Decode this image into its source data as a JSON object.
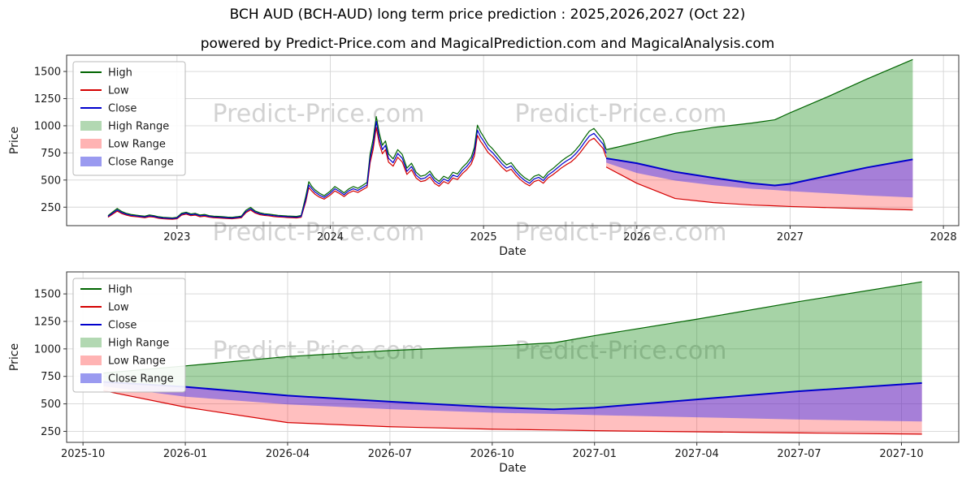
{
  "header": {
    "title": "BCH AUD (BCH-AUD) long term price prediction : 2025,2026,2027 (Oct 22)",
    "subtitle": "powered by Predict-Price.com and MagicalPrediction.com and MagicalAnalysis.com"
  },
  "watermark": {
    "text": "Predict-Price.com"
  },
  "chart_data": {
    "type": "line",
    "title": "BCH AUD (BCH-AUD) long term price prediction : 2025,2026,2027 (Oct 22)",
    "legend": [
      {
        "label": "High",
        "type": "line",
        "color": "#006400"
      },
      {
        "label": "Low",
        "type": "line",
        "color": "#d40000"
      },
      {
        "label": "Close",
        "type": "line",
        "color": "#0000cd"
      },
      {
        "label": "High Range",
        "type": "patch",
        "color": "#b2d8b2"
      },
      {
        "label": "Low Range",
        "type": "patch",
        "color": "#ffb3b3"
      },
      {
        "label": "Close Range",
        "type": "patch",
        "color": "#9a9af0"
      }
    ],
    "colors": {
      "high_line": "#006400",
      "low_line": "#d40000",
      "close_line": "#0000cd",
      "high_fill": "#008000",
      "low_fill": "#ff2a2a",
      "close_fill": "#2020ff",
      "grid": "#d5d5d5",
      "watermark": "#d2d2d2"
    },
    "history": {
      "x": [
        2022.55,
        2022.58,
        2022.61,
        2022.64,
        2022.67,
        2022.7,
        2022.73,
        2022.76,
        2022.79,
        2022.82,
        2022.85,
        2022.88,
        2022.91,
        2022.94,
        2022.97,
        2023.0,
        2023.03,
        2023.06,
        2023.09,
        2023.12,
        2023.15,
        2023.18,
        2023.21,
        2023.24,
        2023.27,
        2023.3,
        2023.33,
        2023.36,
        2023.39,
        2023.42,
        2023.45,
        2023.48,
        2023.51,
        2023.54,
        2023.57,
        2023.6,
        2023.63,
        2023.66,
        2023.69,
        2023.72,
        2023.75,
        2023.78,
        2023.81,
        2023.84,
        2023.86,
        2023.88,
        2023.9,
        2023.93,
        2023.96,
        2024.0,
        2024.03,
        2024.06,
        2024.09,
        2024.12,
        2024.15,
        2024.18,
        2024.21,
        2024.24,
        2024.26,
        2024.28,
        2024.3,
        2024.32,
        2024.34,
        2024.36,
        2024.38,
        2024.41,
        2024.44,
        2024.47,
        2024.5,
        2024.53,
        2024.56,
        2024.59,
        2024.62,
        2024.65,
        2024.68,
        2024.71,
        2024.74,
        2024.77,
        2024.8,
        2024.83,
        2024.86,
        2024.89,
        2024.92,
        2024.94,
        2024.96,
        2024.98,
        2025.0,
        2025.03,
        2025.06,
        2025.09,
        2025.12,
        2025.15,
        2025.18,
        2025.21,
        2025.24,
        2025.27,
        2025.3,
        2025.33,
        2025.36,
        2025.39,
        2025.42,
        2025.45,
        2025.48,
        2025.51,
        2025.54,
        2025.57,
        2025.6,
        2025.63,
        2025.66,
        2025.69,
        2025.72,
        2025.75,
        2025.78,
        2025.8
      ],
      "high": [
        172,
        205,
        238,
        210,
        193,
        183,
        177,
        172,
        167,
        178,
        172,
        162,
        157,
        154,
        151,
        157,
        194,
        204,
        188,
        193,
        178,
        183,
        172,
        167,
        165,
        162,
        159,
        157,
        162,
        168,
        222,
        248,
        215,
        199,
        190,
        186,
        180,
        175,
        172,
        169,
        167,
        165,
        174,
        350,
        485,
        440,
        410,
        378,
        356,
        398,
        440,
        413,
        382,
        418,
        440,
        424,
        450,
        478,
        740,
        880,
        1085,
        930,
        820,
        860,
        740,
        695,
        780,
        735,
        610,
        655,
        572,
        535,
        546,
        582,
        520,
        488,
        535,
        514,
        572,
        556,
        614,
        655,
        712,
        800,
        1005,
        945,
        900,
        828,
        786,
        734,
        682,
        640,
        660,
        603,
        556,
        520,
        494,
        535,
        550,
        519,
        572,
        603,
        640,
        677,
        708,
        734,
        776,
        828,
        892,
        950,
        975,
        922,
        870,
        782
      ],
      "low": [
        158,
        186,
        214,
        191,
        177,
        167,
        163,
        158,
        153,
        162,
        158,
        148,
        143,
        141,
        139,
        143,
        177,
        186,
        172,
        177,
        162,
        167,
        158,
        153,
        151,
        148,
        145,
        143,
        148,
        153,
        200,
        224,
        196,
        181,
        174,
        170,
        164,
        160,
        158,
        155,
        153,
        151,
        157,
        300,
        430,
        398,
        370,
        342,
        324,
        362,
        400,
        376,
        348,
        381,
        400,
        386,
        410,
        434,
        660,
        785,
        985,
        835,
        742,
        780,
        665,
        628,
        710,
        665,
        552,
        595,
        519,
        486,
        495,
        528,
        471,
        443,
        486,
        467,
        519,
        505,
        557,
        595,
        648,
        722,
        912,
        857,
        818,
        752,
        714,
        666,
        618,
        580,
        600,
        547,
        504,
        471,
        447,
        486,
        500,
        471,
        519,
        547,
        580,
        614,
        642,
        666,
        704,
        752,
        808,
        862,
        885,
        838,
        790,
        708
      ],
      "close": [
        165,
        195,
        225,
        200,
        185,
        175,
        170,
        165,
        160,
        170,
        165,
        155,
        150,
        148,
        145,
        150,
        185,
        195,
        180,
        185,
        170,
        175,
        165,
        160,
        158,
        155,
        152,
        150,
        155,
        160,
        210,
        235,
        205,
        190,
        182,
        178,
        172,
        168,
        165,
        162,
        160,
        158,
        165,
        320,
        455,
        420,
        390,
        360,
        340,
        380,
        420,
        395,
        365,
        400,
        420,
        405,
        430,
        455,
        700,
        830,
        1040,
        880,
        780,
        820,
        700,
        660,
        745,
        700,
        580,
        625,
        545,
        510,
        520,
        555,
        495,
        465,
        510,
        490,
        545,
        530,
        585,
        625,
        680,
        760,
        960,
        900,
        860,
        790,
        750,
        700,
        650,
        610,
        630,
        575,
        530,
        495,
        470,
        510,
        525,
        495,
        545,
        575,
        610,
        645,
        675,
        700,
        740,
        790,
        850,
        905,
        930,
        880,
        830,
        745
      ]
    },
    "forecast": {
      "x": [
        2025.8,
        2026.0,
        2026.25,
        2026.5,
        2026.75,
        2026.9,
        2027.0,
        2027.25,
        2027.5,
        2027.8
      ],
      "close": [
        700,
        655,
        575,
        520,
        470,
        450,
        465,
        540,
        615,
        690
      ],
      "high_top": [
        780,
        845,
        930,
        985,
        1025,
        1055,
        1120,
        1270,
        1430,
        1610
      ],
      "low_bottom": [
        620,
        470,
        330,
        292,
        270,
        262,
        256,
        246,
        236,
        225
      ],
      "close_band_bottom": [
        660,
        565,
        495,
        452,
        420,
        408,
        398,
        378,
        358,
        340
      ]
    },
    "panels": [
      {
        "name": "history-and-forecast",
        "xlabel": "Date",
        "ylabel": "Price",
        "xlim": [
          2022.28,
          2028.1
        ],
        "ylim": [
          80,
          1650
        ],
        "xticks": [
          2023,
          2024,
          2025,
          2026,
          2027,
          2028
        ],
        "xtick_labels": [
          "2023",
          "2024",
          "2025",
          "2026",
          "2027",
          "2028"
        ],
        "yticks": [
          250,
          500,
          750,
          1000,
          1250,
          1500
        ],
        "show_history": true
      },
      {
        "name": "forecast-detail",
        "xlabel": "Date",
        "ylabel": "Price",
        "xlim": [
          2025.71,
          2027.89
        ],
        "ylim": [
          150,
          1700
        ],
        "xticks": [
          2025.75,
          2026.0,
          2026.25,
          2026.5,
          2026.75,
          2027.0,
          2027.25,
          2027.5,
          2027.75
        ],
        "xtick_labels": [
          "2025-10",
          "2026-01",
          "2026-04",
          "2026-07",
          "2026-10",
          "2027-01",
          "2027-04",
          "2027-07",
          "2027-10"
        ],
        "yticks": [
          250,
          500,
          750,
          1000,
          1250,
          1500
        ],
        "show_history": false
      }
    ]
  }
}
